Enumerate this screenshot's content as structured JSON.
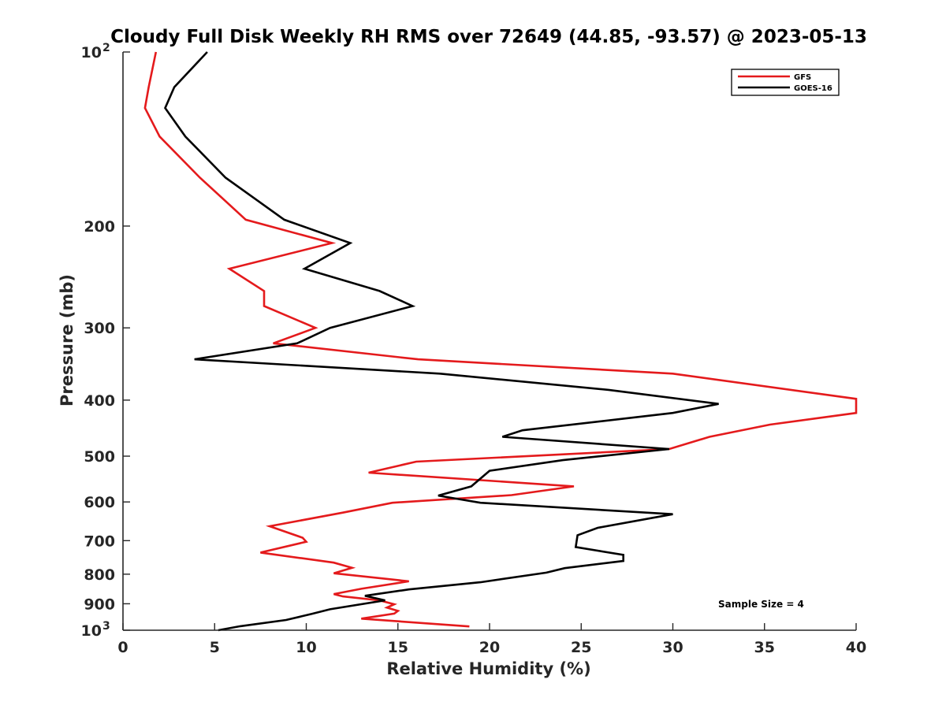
{
  "chart_data": {
    "type": "line",
    "title": "Cloudy Full Disk Weekly RH RMS over 72649 (44.85, -93.57) @ 2023-05-13",
    "xlabel": "Relative Humidity (%)",
    "ylabel": "Pressure (mb)",
    "xlim": [
      0,
      40
    ],
    "ylim": [
      100,
      1000
    ],
    "y_scale": "log",
    "y_reversed": true,
    "grid": false,
    "legend_position": "top-right",
    "x_ticks": [
      0,
      5,
      10,
      15,
      20,
      25,
      30,
      35,
      40
    ],
    "x_tick_labels": [
      "0",
      "5",
      "10",
      "15",
      "20",
      "25",
      "30",
      "35",
      "40"
    ],
    "y_ticks": [
      100,
      200,
      300,
      400,
      500,
      600,
      700,
      800,
      900,
      1000
    ],
    "y_tick_labels": [
      {
        "base": "10",
        "exp": "2"
      },
      {
        "base": "200",
        "exp": ""
      },
      {
        "base": "300",
        "exp": ""
      },
      {
        "base": "400",
        "exp": ""
      },
      {
        "base": "500",
        "exp": ""
      },
      {
        "base": "600",
        "exp": ""
      },
      {
        "base": "700",
        "exp": ""
      },
      {
        "base": "800",
        "exp": ""
      },
      {
        "base": "900",
        "exp": ""
      },
      {
        "base": "10",
        "exp": "3"
      }
    ],
    "annotation": "Sample Size = 4",
    "series": [
      {
        "name": "GFS",
        "color": "#e41a1c",
        "points": [
          [
            1.8,
            100
          ],
          [
            1.4,
            115
          ],
          [
            1.2,
            125
          ],
          [
            2.0,
            140
          ],
          [
            4.2,
            165
          ],
          [
            6.7,
            195
          ],
          [
            11.4,
            214
          ],
          [
            5.8,
            237
          ],
          [
            7.7,
            259
          ],
          [
            7.7,
            275
          ],
          [
            10.5,
            300
          ],
          [
            8.2,
            319
          ],
          [
            16.1,
            340
          ],
          [
            30.0,
            360
          ],
          [
            40.0,
            398
          ],
          [
            40.0,
            421
          ],
          [
            35.3,
            441
          ],
          [
            32.0,
            463
          ],
          [
            29.8,
            486
          ],
          [
            16.0,
            511
          ],
          [
            13.4,
            534
          ],
          [
            24.6,
            564
          ],
          [
            21.2,
            584
          ],
          [
            14.7,
            602
          ],
          [
            12.0,
            626
          ],
          [
            8.0,
            661
          ],
          [
            9.8,
            692
          ],
          [
            10.0,
            703
          ],
          [
            7.5,
            734
          ],
          [
            11.5,
            764
          ],
          [
            12.5,
            780
          ],
          [
            11.5,
            797
          ],
          [
            15.6,
            823
          ],
          [
            13.0,
            848
          ],
          [
            11.5,
            866
          ],
          [
            12.0,
            874
          ],
          [
            14.0,
            888
          ],
          [
            14.8,
            902
          ],
          [
            14.4,
            914
          ],
          [
            15.0,
            926
          ],
          [
            14.8,
            936
          ],
          [
            13.0,
            955
          ],
          [
            18.9,
            985
          ]
        ]
      },
      {
        "name": "GOES-16",
        "color": "#000000",
        "points": [
          [
            4.6,
            100
          ],
          [
            2.8,
            115
          ],
          [
            2.3,
            125
          ],
          [
            3.4,
            140
          ],
          [
            5.6,
            165
          ],
          [
            8.8,
            195
          ],
          [
            12.4,
            214
          ],
          [
            9.9,
            237
          ],
          [
            14.0,
            259
          ],
          [
            15.8,
            275
          ],
          [
            11.3,
            300
          ],
          [
            9.5,
            319
          ],
          [
            3.9,
            340
          ],
          [
            17.3,
            360
          ],
          [
            26.5,
            384
          ],
          [
            32.5,
            406
          ],
          [
            30.0,
            421
          ],
          [
            21.8,
            451
          ],
          [
            20.7,
            463
          ],
          [
            29.8,
            486
          ],
          [
            24.0,
            508
          ],
          [
            20.0,
            530
          ],
          [
            19.0,
            564
          ],
          [
            17.2,
            585
          ],
          [
            19.5,
            602
          ],
          [
            30.0,
            630
          ],
          [
            25.9,
            665
          ],
          [
            24.8,
            685
          ],
          [
            24.7,
            718
          ],
          [
            27.3,
            741
          ],
          [
            27.3,
            759
          ],
          [
            24.1,
            781
          ],
          [
            23.1,
            795
          ],
          [
            19.5,
            826
          ],
          [
            15.6,
            850
          ],
          [
            13.2,
            872
          ],
          [
            14.3,
            888
          ],
          [
            11.3,
            920
          ],
          [
            10.3,
            937
          ],
          [
            8.9,
            960
          ],
          [
            6.4,
            984
          ],
          [
            5.2,
            1000
          ]
        ]
      }
    ]
  }
}
